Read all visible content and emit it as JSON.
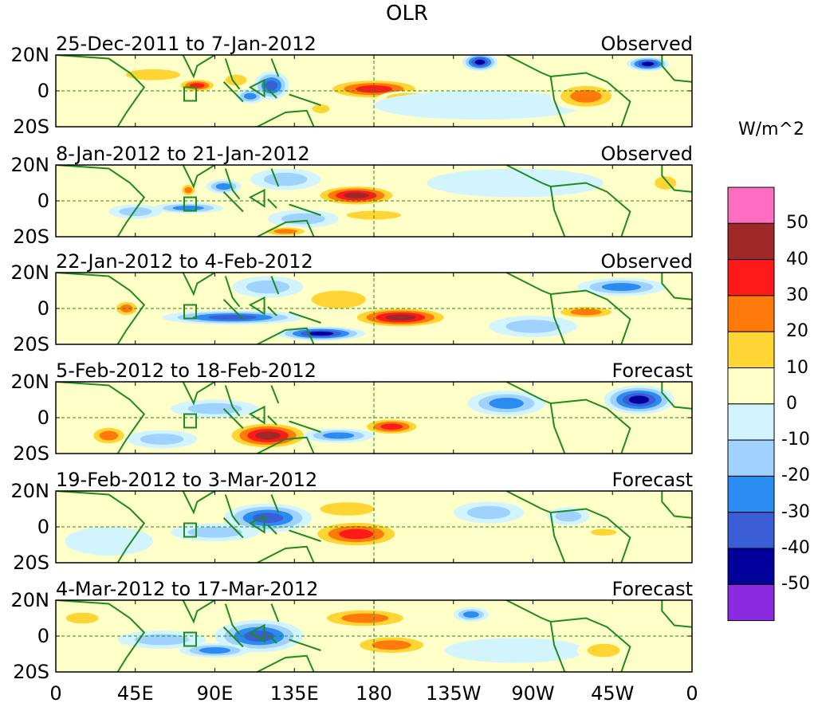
{
  "chart_data": {
    "type": "heatmap",
    "title": "OLR",
    "units": "W/m^2",
    "x_ticks": [
      "0",
      "45E",
      "90E",
      "135E",
      "180",
      "135W",
      "90W",
      "45W",
      "0"
    ],
    "y_ticks": [
      "20N",
      "0",
      "20S"
    ],
    "colorbar": {
      "levels": [
        "50",
        "40",
        "30",
        "20",
        "10",
        "0",
        "-10",
        "-20",
        "-30",
        "-40",
        "-50"
      ],
      "colors": [
        "#ff6ec0",
        "#a02828",
        "#ff1a1a",
        "#ff7a0a",
        "#ffd534",
        "#ffffc8",
        "#d2f4ff",
        "#a0d2ff",
        "#2a8cf0",
        "#3a5ed6",
        "#00009a",
        "#8a2be2"
      ]
    },
    "panels": [
      {
        "period": "25-Dec-2011 to 7-Jan-2012",
        "status": "Observed",
        "anomalies": [
          {
            "lon": 80,
            "lat": 3,
            "rx": 12,
            "ry": 4,
            "value": 35
          },
          {
            "lon": 102,
            "lat": 6,
            "rx": 10,
            "ry": 5,
            "value": 20
          },
          {
            "lon": 122,
            "lat": 3,
            "rx": 10,
            "ry": 8,
            "value": -40
          },
          {
            "lon": 110,
            "lat": -3,
            "rx": 8,
            "ry": 4,
            "value": -25
          },
          {
            "lon": 180,
            "lat": 1,
            "rx": 30,
            "ry": 6,
            "value": 40
          },
          {
            "lon": 200,
            "lat": -4,
            "rx": 18,
            "ry": 4,
            "value": 25
          },
          {
            "lon": 150,
            "lat": -10,
            "rx": 8,
            "ry": 4,
            "value": 20
          },
          {
            "lon": 55,
            "lat": 9,
            "rx": 25,
            "ry": 5,
            "value": 15
          },
          {
            "lon": 240,
            "lat": 16,
            "rx": 10,
            "ry": 5,
            "value": -50
          },
          {
            "lon": 240,
            "lat": -8,
            "rx": 60,
            "ry": 8,
            "value": -5
          },
          {
            "lon": 300,
            "lat": -3,
            "rx": 20,
            "ry": 8,
            "value": 25
          },
          {
            "lon": 335,
            "lat": 15,
            "rx": 12,
            "ry": 4,
            "value": -50
          },
          {
            "lon": 20,
            "lat": -15,
            "rx": 20,
            "ry": 6,
            "value": 10
          }
        ]
      },
      {
        "period": "8-Jan-2012 to 21-Jan-2012",
        "status": "Observed",
        "anomalies": [
          {
            "lon": 170,
            "lat": 3,
            "rx": 25,
            "ry": 6,
            "value": 45
          },
          {
            "lon": 180,
            "lat": -8,
            "rx": 25,
            "ry": 4,
            "value": 20
          },
          {
            "lon": 75,
            "lat": -4,
            "rx": 20,
            "ry": 3,
            "value": -30
          },
          {
            "lon": 45,
            "lat": -6,
            "rx": 15,
            "ry": 4,
            "value": -20
          },
          {
            "lon": 130,
            "lat": 12,
            "rx": 20,
            "ry": 6,
            "value": -20
          },
          {
            "lon": 140,
            "lat": -10,
            "rx": 20,
            "ry": 5,
            "value": -20
          },
          {
            "lon": 95,
            "lat": 8,
            "rx": 10,
            "ry": 4,
            "value": -25
          },
          {
            "lon": 75,
            "lat": 6,
            "rx": 5,
            "ry": 4,
            "value": 30
          },
          {
            "lon": 260,
            "lat": 10,
            "rx": 50,
            "ry": 8,
            "value": -10
          },
          {
            "lon": 345,
            "lat": 10,
            "rx": 10,
            "ry": 6,
            "value": 20
          },
          {
            "lon": 130,
            "lat": -17,
            "rx": 15,
            "ry": 3,
            "value": 25
          }
        ]
      },
      {
        "period": "22-Jan-2012 to 4-Feb-2012",
        "status": "Observed",
        "anomalies": [
          {
            "lon": 195,
            "lat": -5,
            "rx": 30,
            "ry": 6,
            "value": 45
          },
          {
            "lon": 160,
            "lat": 5,
            "rx": 25,
            "ry": 8,
            "value": 15
          },
          {
            "lon": 100,
            "lat": -5,
            "rx": 40,
            "ry": 4,
            "value": -40
          },
          {
            "lon": 150,
            "lat": -14,
            "rx": 25,
            "ry": 4,
            "value": -50
          },
          {
            "lon": 120,
            "lat": 12,
            "rx": 20,
            "ry": 6,
            "value": -20
          },
          {
            "lon": 40,
            "lat": 0,
            "rx": 8,
            "ry": 5,
            "value": 25
          },
          {
            "lon": 320,
            "lat": 12,
            "rx": 25,
            "ry": 5,
            "value": -30
          },
          {
            "lon": 300,
            "lat": -2,
            "rx": 20,
            "ry": 4,
            "value": 25
          },
          {
            "lon": 270,
            "lat": -10,
            "rx": 25,
            "ry": 6,
            "value": -15
          },
          {
            "lon": 30,
            "lat": 10,
            "rx": 20,
            "ry": 6,
            "value": 10
          }
        ]
      },
      {
        "period": "5-Feb-2012 to 18-Feb-2012",
        "status": "Forecast",
        "anomalies": [
          {
            "lon": 120,
            "lat": -10,
            "rx": 25,
            "ry": 8,
            "value": 45
          },
          {
            "lon": 190,
            "lat": -5,
            "rx": 18,
            "ry": 5,
            "value": 40
          },
          {
            "lon": 30,
            "lat": -10,
            "rx": 12,
            "ry": 6,
            "value": 30
          },
          {
            "lon": 330,
            "lat": 10,
            "rx": 20,
            "ry": 8,
            "value": -45
          },
          {
            "lon": 255,
            "lat": 8,
            "rx": 22,
            "ry": 7,
            "value": -30
          },
          {
            "lon": 160,
            "lat": -10,
            "rx": 20,
            "ry": 4,
            "value": -30
          },
          {
            "lon": 90,
            "lat": 5,
            "rx": 25,
            "ry": 5,
            "value": -15
          },
          {
            "lon": 60,
            "lat": -12,
            "rx": 20,
            "ry": 5,
            "value": -15
          },
          {
            "lon": 175,
            "lat": 12,
            "rx": 25,
            "ry": 5,
            "value": 10
          }
        ]
      },
      {
        "period": "19-Feb-2012 to 3-Mar-2012",
        "status": "Forecast",
        "anomalies": [
          {
            "lon": 170,
            "lat": -4,
            "rx": 28,
            "ry": 8,
            "value": 35
          },
          {
            "lon": 165,
            "lat": 10,
            "rx": 25,
            "ry": 6,
            "value": 15
          },
          {
            "lon": 120,
            "lat": 5,
            "rx": 25,
            "ry": 8,
            "value": -35
          },
          {
            "lon": 90,
            "lat": -3,
            "rx": 25,
            "ry": 5,
            "value": -15
          },
          {
            "lon": 245,
            "lat": 8,
            "rx": 20,
            "ry": 6,
            "value": -15
          },
          {
            "lon": 290,
            "lat": 6,
            "rx": 12,
            "ry": 5,
            "value": -20
          },
          {
            "lon": 310,
            "lat": -3,
            "rx": 12,
            "ry": 3,
            "value": 20
          },
          {
            "lon": 30,
            "lat": -8,
            "rx": 25,
            "ry": 8,
            "value": -10
          }
        ]
      },
      {
        "period": "4-Mar-2012 to 17-Mar-2012",
        "status": "Forecast",
        "anomalies": [
          {
            "lon": 175,
            "lat": 10,
            "rx": 30,
            "ry": 6,
            "value": 25
          },
          {
            "lon": 190,
            "lat": -5,
            "rx": 25,
            "ry": 6,
            "value": 30
          },
          {
            "lon": 115,
            "lat": 0,
            "rx": 25,
            "ry": 9,
            "value": -40
          },
          {
            "lon": 60,
            "lat": -2,
            "rx": 25,
            "ry": 5,
            "value": -20
          },
          {
            "lon": 90,
            "lat": -8,
            "rx": 20,
            "ry": 4,
            "value": -25
          },
          {
            "lon": 235,
            "lat": 12,
            "rx": 10,
            "ry": 4,
            "value": -25
          },
          {
            "lon": 260,
            "lat": -8,
            "rx": 40,
            "ry": 7,
            "value": -10
          },
          {
            "lon": 310,
            "lat": -8,
            "rx": 15,
            "ry": 6,
            "value": 15
          },
          {
            "lon": 15,
            "lat": 10,
            "rx": 15,
            "ry": 5,
            "value": 20
          }
        ]
      }
    ]
  }
}
